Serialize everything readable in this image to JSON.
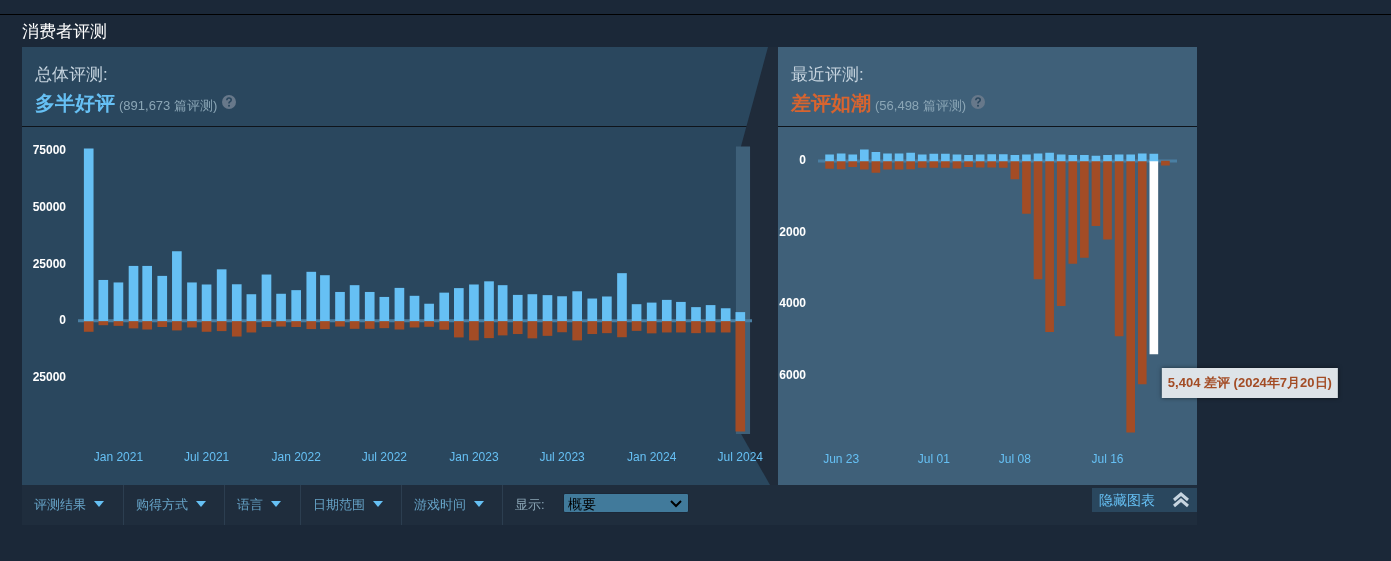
{
  "chart_data": [
    {
      "type": "bar",
      "title": "总体评测:",
      "subtitle": "多半好评",
      "annotations": [
        "(891,673 篇评测)"
      ],
      "x": [
        "2020-11",
        "2020-12",
        "2021-01",
        "2021-02",
        "2021-03",
        "2021-04",
        "2021-05",
        "2021-06",
        "2021-07",
        "2021-08",
        "2021-09",
        "2021-10",
        "2021-11",
        "2021-12",
        "2022-01",
        "2022-02",
        "2022-03",
        "2022-04",
        "2022-05",
        "2022-06",
        "2022-07",
        "2022-08",
        "2022-09",
        "2022-10",
        "2022-11",
        "2022-12",
        "2023-01",
        "2023-02",
        "2023-03",
        "2023-04",
        "2023-05",
        "2023-06",
        "2023-07",
        "2023-08",
        "2023-09",
        "2023-10",
        "2023-11",
        "2023-12",
        "2024-01",
        "2024-02",
        "2024-03",
        "2024-04",
        "2024-05",
        "2024-06",
        "2024-07"
      ],
      "series": [
        {
          "color": "#66c0f4",
          "values": [
            76000,
            17900,
            16800,
            24100,
            24100,
            19700,
            30600,
            16800,
            15900,
            22600,
            16000,
            11600,
            20300,
            11800,
            13400,
            21500,
            20000,
            12600,
            15600,
            12600,
            10400,
            14400,
            10900,
            7400,
            12300,
            14300,
            15900,
            17300,
            15600,
            11300,
            11600,
            11200,
            10700,
            12900,
            9700,
            10600,
            20900,
            7200,
            7900,
            9100,
            8200,
            5900,
            6800,
            5400,
            3700
          ]
        },
        {
          "color": "#a34c25",
          "values": [
            -4700,
            -1800,
            -2100,
            -3200,
            -3700,
            -2600,
            -4100,
            -2800,
            -4700,
            -4400,
            -6800,
            -5000,
            -2600,
            -2400,
            -2600,
            -3500,
            -3500,
            -2400,
            -3400,
            -3400,
            -3100,
            -3700,
            -2800,
            -2500,
            -3800,
            -7200,
            -8500,
            -7500,
            -6300,
            -5700,
            -7600,
            -6500,
            -4900,
            -8500,
            -5700,
            -5300,
            -7100,
            -4300,
            -5400,
            -5000,
            -5000,
            -5300,
            -5000,
            -5000,
            -48800
          ]
        }
      ],
      "xlim": [
        "2020-10-10",
        "2024-07-25"
      ],
      "xticks": [
        {
          "value": "2021-01",
          "label": "Jan 2021"
        },
        {
          "value": "2021-07",
          "label": "Jul 2021"
        },
        {
          "value": "2022-01",
          "label": "Jan 2022"
        },
        {
          "value": "2022-07",
          "label": "Jul 2022"
        },
        {
          "value": "2023-01",
          "label": "Jan 2023"
        },
        {
          "value": "2023-07",
          "label": "Jul 2023"
        },
        {
          "value": "2024-01",
          "label": "Jan 2024"
        },
        {
          "value": "2024-07",
          "label": "Jul 2024"
        }
      ],
      "ylim": [
        -50000,
        77000
      ],
      "yticks": [
        {
          "value": -25000,
          "label": "25000"
        },
        0,
        25000,
        50000,
        75000
      ],
      "stacked": true,
      "ref_lines": [
        {
          "axis": "y",
          "value": 0,
          "color": "#4a7fa3"
        }
      ],
      "bands": [
        {
          "axis": "x",
          "from": "2024-06-22",
          "to": "2024-07-21",
          "color": "#3e6079"
        }
      ]
    },
    {
      "type": "bar",
      "title": "最近评测:",
      "subtitle": "差评如潮",
      "annotations": [
        "(56,498 篇评测)",
        {
          "text": "5,404 差评 (2024年7月20日)",
          "x": "2024-07-20",
          "y": -5404
        }
      ],
      "x": [
        "2024-06-22",
        "2024-06-23",
        "2024-06-24",
        "2024-06-25",
        "2024-06-26",
        "2024-06-27",
        "2024-06-28",
        "2024-06-29",
        "2024-06-30",
        "2024-07-01",
        "2024-07-02",
        "2024-07-03",
        "2024-07-04",
        "2024-07-05",
        "2024-07-06",
        "2024-07-07",
        "2024-07-08",
        "2024-07-09",
        "2024-07-10",
        "2024-07-11",
        "2024-07-12",
        "2024-07-13",
        "2024-07-14",
        "2024-07-15",
        "2024-07-16",
        "2024-07-17",
        "2024-07-18",
        "2024-07-19",
        "2024-07-20",
        "2024-07-21"
      ],
      "series": [
        {
          "color": "#66c0f4",
          "values": [
            170,
            200,
            170,
            310,
            240,
            200,
            200,
            220,
            170,
            190,
            190,
            170,
            160,
            170,
            180,
            180,
            160,
            170,
            200,
            220,
            170,
            160,
            160,
            140,
            160,
            170,
            170,
            200,
            190,
            null
          ]
        },
        {
          "color": "#a34c25",
          "colors": [
            "#a34c25",
            "#a34c25",
            "#a34c25",
            "#a34c25",
            "#a34c25",
            "#a34c25",
            "#a34c25",
            "#a34c25",
            "#a34c25",
            "#a34c25",
            "#a34c25",
            "#a34c25",
            "#a34c25",
            "#a34c25",
            "#a34c25",
            "#a34c25",
            "#a34c25",
            "#a34c25",
            "#a34c25",
            "#a34c25",
            "#a34c25",
            "#a34c25",
            "#a34c25",
            "#a34c25",
            "#a34c25",
            "#a34c25",
            "#a34c25",
            "#a34c25",
            "#ffffff",
            "#a34c25"
          ],
          "values": [
            -210,
            -220,
            -160,
            -230,
            -320,
            -230,
            -230,
            -220,
            -180,
            -180,
            -180,
            -200,
            -160,
            -170,
            -170,
            -180,
            -500,
            -1470,
            -3300,
            -4780,
            -4050,
            -2870,
            -2700,
            -1810,
            -2190,
            -4900,
            -7590,
            -6240,
            -5404,
            -120
          ]
        }
      ],
      "xlim": [
        "2024-06-21",
        "2024-07-22"
      ],
      "xticks": [
        {
          "value": "2024-06-23",
          "label": "Jun 23"
        },
        {
          "value": "2024-07-01",
          "label": "Jul 01"
        },
        {
          "value": "2024-07-08",
          "label": "Jul 08"
        },
        {
          "value": "2024-07-16",
          "label": "Jul 16"
        }
      ],
      "ylim": [
        -7700,
        400
      ],
      "yticks": [
        0,
        {
          "value": -2000,
          "label": "2000"
        },
        {
          "value": -4000,
          "label": "4000"
        },
        {
          "value": -6000,
          "label": "6000"
        }
      ],
      "stacked": true,
      "ref_lines": [
        {
          "axis": "y",
          "value": 0,
          "color": "#4a7fa3"
        }
      ]
    },
    {
      "type": "other",
      "title": "消费者评测",
      "annotations": [
        "评测结果",
        "购得方式",
        "语言",
        "日期范围",
        "游戏时间",
        "显示:",
        "概要",
        "隐藏图表"
      ]
    }
  ]
}
